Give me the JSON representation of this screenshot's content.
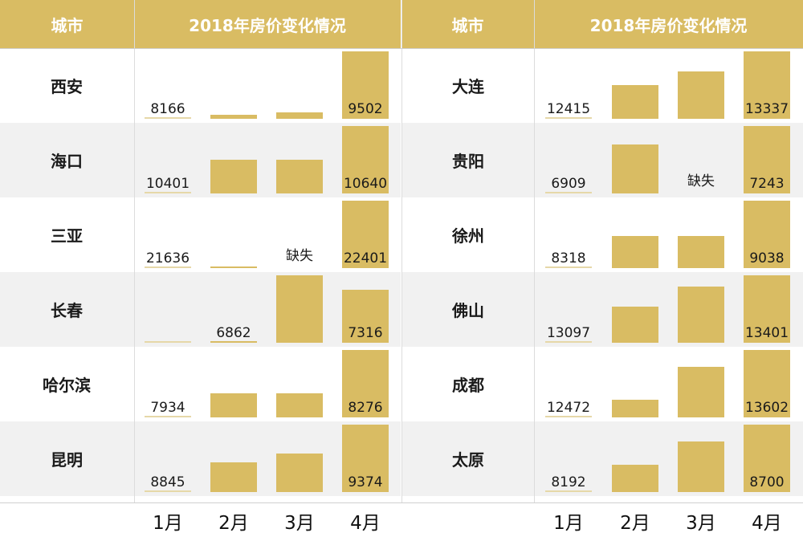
{
  "header": {
    "city_label": "城市",
    "chart_title": "2018年房价变化情况"
  },
  "months": [
    "1月",
    "2月",
    "3月",
    "4月"
  ],
  "missing_label": "缺失",
  "colors": {
    "bar": "#d9bc63",
    "header_bg": "#d9bc63",
    "row_alt": "#f1f1f1"
  },
  "chart_data": [
    {
      "type": "bar",
      "title": "2018年房价变化情况",
      "categories": [
        "1月",
        "2月",
        "3月",
        "4月"
      ],
      "series": [
        {
          "name": "西安",
          "values": [
            8166,
            8250,
            8290,
            9502
          ],
          "labels": [
            "8166",
            "",
            "",
            "9502"
          ]
        },
        {
          "name": "海口",
          "values": [
            10401,
            10520,
            10520,
            10640
          ],
          "labels": [
            "10401",
            "",
            "",
            "10640"
          ]
        },
        {
          "name": "三亚",
          "values": [
            21636,
            21650,
            null,
            22401
          ],
          "labels": [
            "21636",
            "",
            "缺失",
            "22401"
          ]
        },
        {
          "name": "长春",
          "values": [
            6850,
            6862,
            7440,
            7316
          ],
          "labels": [
            "",
            "6862",
            "",
            "7316"
          ]
        },
        {
          "name": "哈尔滨",
          "values": [
            7934,
            8055,
            8055,
            8276
          ],
          "labels": [
            "7934",
            "",
            "",
            "8276"
          ]
        },
        {
          "name": "昆明",
          "values": [
            8845,
            9080,
            9150,
            9374
          ],
          "labels": [
            "8845",
            "",
            "",
            "9374"
          ]
        }
      ]
    },
    {
      "type": "bar",
      "title": "2018年房价变化情况",
      "categories": [
        "1月",
        "2月",
        "3月",
        "4月"
      ],
      "series": [
        {
          "name": "大连",
          "values": [
            12415,
            12880,
            13060,
            13337
          ],
          "labels": [
            "12415",
            "",
            "",
            "13337"
          ]
        },
        {
          "name": "贵阳",
          "values": [
            6909,
            7150,
            null,
            7243
          ],
          "labels": [
            "6909",
            "",
            "缺失",
            "7243"
          ]
        },
        {
          "name": "徐州",
          "values": [
            8318,
            8660,
            8660,
            9038
          ],
          "labels": [
            "8318",
            "",
            "",
            "9038"
          ]
        },
        {
          "name": "佛山",
          "values": [
            13097,
            13260,
            13350,
            13401
          ],
          "labels": [
            "13097",
            "",
            "",
            "13401"
          ]
        },
        {
          "name": "成都",
          "values": [
            12472,
            12770,
            13320,
            13602
          ],
          "labels": [
            "12472",
            "",
            "",
            "13602"
          ]
        },
        {
          "name": "太原",
          "values": [
            8192,
            8400,
            8570,
            8700
          ],
          "labels": [
            "8192",
            "",
            "",
            "8700"
          ]
        }
      ]
    }
  ]
}
